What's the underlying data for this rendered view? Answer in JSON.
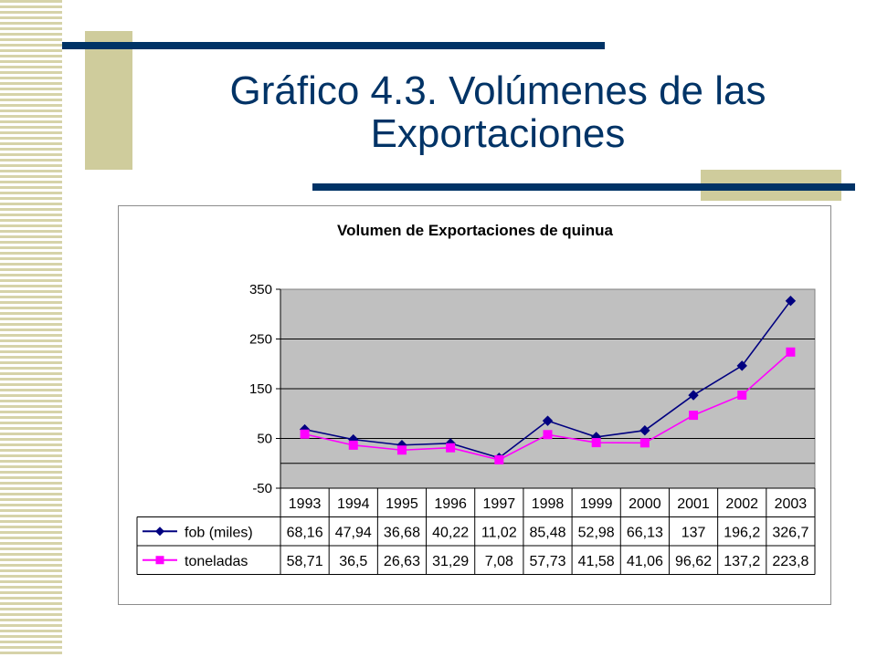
{
  "slide": {
    "title_line1": "Gráfico 4.3. Volúmenes de las",
    "title_line2": "Exportaciones",
    "accent_color": "#003366",
    "stripe_color": "#d6d3a9"
  },
  "chart_data": {
    "type": "line",
    "title": "Volumen de Exportaciones de quinua",
    "categories": [
      "1993",
      "1994",
      "1995",
      "1996",
      "1997",
      "1998",
      "1999",
      "2000",
      "2001",
      "2002",
      "2003"
    ],
    "ylim": [
      -50,
      350
    ],
    "yticks": [
      -50,
      50,
      150,
      250,
      350
    ],
    "grid": true,
    "plot_background": "#c0c0c0",
    "legend": "data-table",
    "series": [
      {
        "name": "fob (miles)",
        "color": "#000080",
        "marker": "diamond",
        "values": [
          68.16,
          47.94,
          36.68,
          40.22,
          11.02,
          85.48,
          52.98,
          66.13,
          137,
          196.2,
          326.7
        ],
        "labels": [
          "68,16",
          "47,94",
          "36,68",
          "40,22",
          "11,02",
          "85,48",
          "52,98",
          "66,13",
          "137",
          "196,2",
          "326,7"
        ]
      },
      {
        "name": "toneladas",
        "color": "#ff00ff",
        "marker": "square",
        "values": [
          58.71,
          36.5,
          26.63,
          31.29,
          7.08,
          57.73,
          41.58,
          41.06,
          96.62,
          137.2,
          223.8
        ],
        "labels": [
          "58,71",
          "36,5",
          "26,63",
          "31,29",
          "7,08",
          "57,73",
          "41,58",
          "41,06",
          "96,62",
          "137,2",
          "223,8"
        ]
      }
    ]
  }
}
